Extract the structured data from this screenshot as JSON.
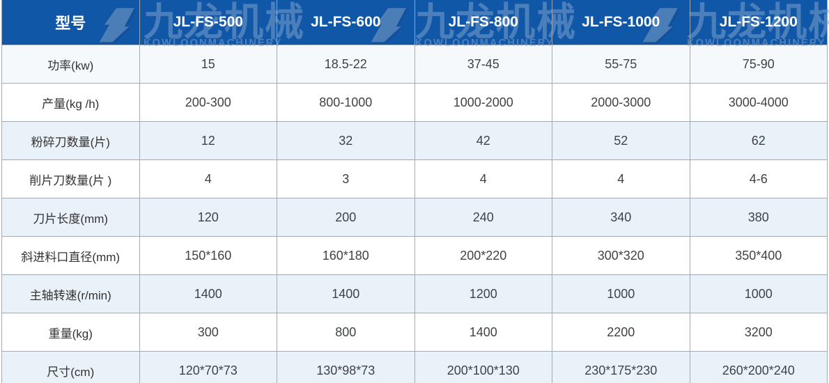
{
  "watermark": {
    "cn": "九龙机械",
    "en": "KOWLOONMACHINERY"
  },
  "table": {
    "header": [
      "型号",
      "JL-FS-500",
      "JL-FS-600",
      "JL-FS-800",
      "JL-FS-1000",
      "JL-FS-1200"
    ],
    "rows": [
      {
        "label": "功率(kw)",
        "values": [
          "15",
          "18.5-22",
          "37-45",
          "55-75",
          "75-90"
        ]
      },
      {
        "label": "产量(kg /h)",
        "values": [
          "200-300",
          "800-1000",
          "1000-2000",
          "2000-3000",
          "3000-4000"
        ]
      },
      {
        "label": "粉碎刀数量(片)",
        "values": [
          "12",
          "32",
          "42",
          "52",
          "62"
        ]
      },
      {
        "label": "削片刀数量(片 )",
        "values": [
          "4",
          "3",
          "4",
          "4",
          "4-6"
        ]
      },
      {
        "label": "刀片长度(mm)",
        "values": [
          "120",
          "200",
          "240",
          "340",
          "380"
        ]
      },
      {
        "label": "斜进料口直径(mm)",
        "values": [
          "150*160",
          "160*180",
          "200*220",
          "300*320",
          "350*400"
        ]
      },
      {
        "label": "主轴转速(r/min)",
        "values": [
          "1400",
          "1400",
          "1200",
          "1000",
          "1000"
        ]
      },
      {
        "label": "重量(kg)",
        "values": [
          "300",
          "800",
          "1400",
          "2200",
          "3200"
        ]
      },
      {
        "label": "尺寸(cm)",
        "values": [
          "120*70*73",
          "130*98*73",
          "200*100*130",
          "230*175*230",
          "260*200*240"
        ]
      }
    ]
  },
  "colors": {
    "header_bg": "#1157a8",
    "header_text": "#ffffff",
    "row_tint": "#eaf2f9",
    "row_first_tint": "#f6f9fc",
    "border": "#a3aab1",
    "cell_text": "#3f4347",
    "watermark": "#80a4cd"
  }
}
